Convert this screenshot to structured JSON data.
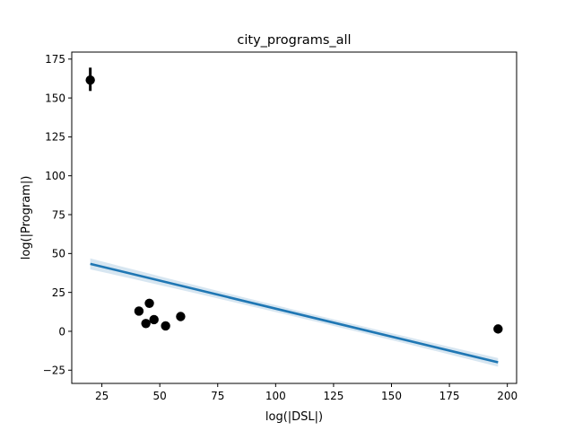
{
  "chart_data": {
    "type": "scatter",
    "title": "city_programs_all",
    "xlabel": "log(|DSL|)",
    "ylabel": "log(|Program|)",
    "xlim": [
      12,
      204
    ],
    "ylim": [
      -33.5,
      179.5
    ],
    "xticks": [
      25,
      50,
      75,
      100,
      125,
      150,
      175,
      200
    ],
    "yticks": [
      -25,
      0,
      25,
      50,
      75,
      100,
      125,
      150,
      175
    ],
    "grid": false,
    "legend": "none",
    "point_color": "#000000",
    "points": [
      {
        "x": 20,
        "y": 161.5,
        "err": [
          154.5,
          169.5
        ]
      },
      {
        "x": 41,
        "y": 13
      },
      {
        "x": 44,
        "y": 5
      },
      {
        "x": 45.5,
        "y": 18
      },
      {
        "x": 47.5,
        "y": 7.5
      },
      {
        "x": 52.5,
        "y": 3.5
      },
      {
        "x": 59,
        "y": 9.5
      },
      {
        "x": 196,
        "y": 1.5
      }
    ],
    "regression": {
      "color": "#1f77b4",
      "band_color": "#1f77b4",
      "x_range": [
        20,
        196
      ],
      "slope": -0.3597,
      "intercept": 50.54,
      "ci_halfwidth_start": 3.5,
      "ci_halfwidth_mid": 1.2,
      "ci_halfwidth_end": 2.8
    }
  }
}
